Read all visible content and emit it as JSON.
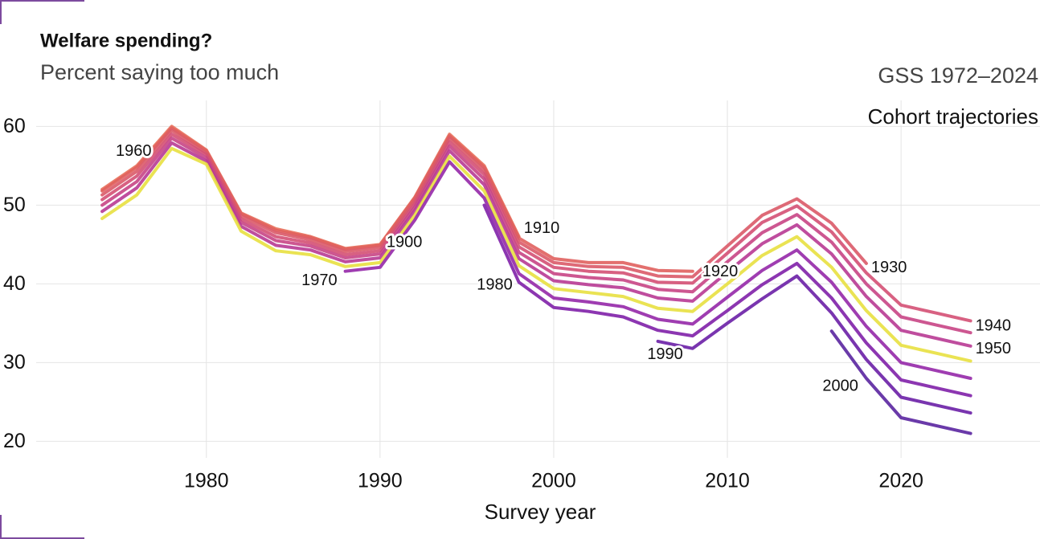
{
  "chart_data": {
    "type": "line",
    "title": "Welfare spending?",
    "subtitle": "Percent saying too much",
    "source": "GSS 1972–2024",
    "annotation": "Cohort trajectories",
    "x_label": "Survey year",
    "x": [
      1974,
      1976,
      1978,
      1980,
      1982,
      1984,
      1986,
      1988,
      1990,
      1992,
      1994,
      1996,
      1998,
      2000,
      2002,
      2004,
      2006,
      2008,
      2010,
      2012,
      2014,
      2016,
      2018,
      2020,
      2022,
      2024
    ],
    "xlim": [
      1970.2,
      2028
    ],
    "xticks": [
      1980,
      1990,
      2000,
      2010,
      2020
    ],
    "ylim": [
      17.9,
      63.3
    ],
    "yticks": [
      20,
      30,
      40,
      50,
      60
    ],
    "grid": true,
    "series": [
      {
        "name": "1900",
        "color": "#e8705a",
        "values": [
          52,
          55,
          60,
          57,
          49,
          47,
          46,
          44.5,
          45,
          51,
          59,
          55,
          46,
          null,
          null,
          null,
          null,
          null,
          null,
          null,
          null,
          null,
          null,
          null,
          null,
          null
        ]
      },
      {
        "name": "1910",
        "color": "#e0605e",
        "values": [
          51.8,
          54.8,
          59.8,
          56.9,
          48.9,
          46.8,
          45.9,
          44.4,
          44.9,
          50.9,
          58.8,
          54.8,
          45.8,
          43.2,
          42.7,
          42.7,
          41.7,
          41.6,
          null,
          null,
          null,
          null,
          null,
          null,
          null,
          null
        ]
      },
      {
        "name": "1920",
        "color": "#da5a68",
        "values": [
          51.3,
          54.3,
          59.5,
          56.6,
          48.6,
          46.5,
          45.6,
          44.1,
          44.6,
          50.6,
          58.5,
          54.4,
          45.3,
          42.7,
          42.2,
          42.1,
          41.0,
          40.9,
          44.8,
          48.7,
          50.8,
          47.7,
          42.6,
          null,
          null,
          null
        ]
      },
      {
        "name": "1930",
        "color": "#d45074",
        "values": [
          50.7,
          53.7,
          59.0,
          56.4,
          48.2,
          46.0,
          45.2,
          43.7,
          44.2,
          50.2,
          58.0,
          53.9,
          44.7,
          42.1,
          41.6,
          41.4,
          40.2,
          40.1,
          43.9,
          47.8,
          49.9,
          46.6,
          41.4,
          37.3,
          36.3,
          35.3
        ]
      },
      {
        "name": "1940",
        "color": "#c84585",
        "values": [
          50,
          53,
          58.5,
          56,
          47.8,
          45.5,
          44.8,
          43.3,
          43.8,
          49.8,
          57.5,
          53.3,
          44,
          41.3,
          40.8,
          40.5,
          39.3,
          39,
          42.8,
          46.5,
          48.8,
          45.3,
          40,
          35.8,
          34.8,
          33.8
        ]
      },
      {
        "name": "1950",
        "color": "#b83a94",
        "values": [
          49.2,
          52.2,
          57.9,
          55.6,
          47.3,
          44.9,
          44.3,
          42.8,
          43.3,
          49.3,
          56.9,
          52.6,
          43.2,
          40.4,
          39.9,
          39.5,
          38.2,
          37.8,
          41.5,
          45.1,
          47.5,
          43.8,
          38.4,
          34.1,
          33.1,
          32.1
        ]
      },
      {
        "name": "1960",
        "color": "#e8e040",
        "values": [
          48.3,
          51.3,
          57.2,
          55.2,
          46.7,
          44.2,
          43.7,
          42.2,
          42.7,
          48.7,
          56.2,
          51.8,
          42.3,
          39.4,
          38.9,
          38.4,
          36.9,
          36.5,
          40.0,
          43.6,
          46.0,
          42.1,
          36.6,
          32.2,
          31.2,
          30.2
        ]
      },
      {
        "name": "1970",
        "color": "#9528a8",
        "values": [
          null,
          null,
          null,
          null,
          null,
          null,
          null,
          41.6,
          42.1,
          48.1,
          55.5,
          50.9,
          41.3,
          38.2,
          37.7,
          37.1,
          35.5,
          34.9,
          38.3,
          41.7,
          44.3,
          40.2,
          34.6,
          30.0,
          29.0,
          28.0
        ]
      },
      {
        "name": "1980",
        "color": "#8020a8",
        "values": [
          null,
          null,
          null,
          null,
          null,
          null,
          null,
          null,
          null,
          null,
          null,
          50.0,
          40.2,
          37.0,
          36.5,
          35.8,
          34.1,
          33.4,
          36.6,
          39.9,
          42.6,
          38.2,
          32.5,
          27.8,
          26.8,
          25.8
        ]
      },
      {
        "name": "1990",
        "color": "#6a1fa6",
        "values": [
          null,
          null,
          null,
          null,
          null,
          null,
          null,
          null,
          null,
          null,
          null,
          null,
          null,
          null,
          null,
          null,
          32.7,
          31.8,
          35.0,
          38.1,
          41.0,
          36.3,
          30.4,
          25.6,
          24.6,
          23.6
        ]
      },
      {
        "name": "2000",
        "color": "#5a25a0",
        "values": [
          null,
          null,
          null,
          null,
          null,
          null,
          null,
          null,
          null,
          null,
          null,
          null,
          null,
          null,
          null,
          null,
          null,
          null,
          null,
          null,
          null,
          34,
          28,
          23,
          22,
          21
        ]
      }
    ]
  }
}
